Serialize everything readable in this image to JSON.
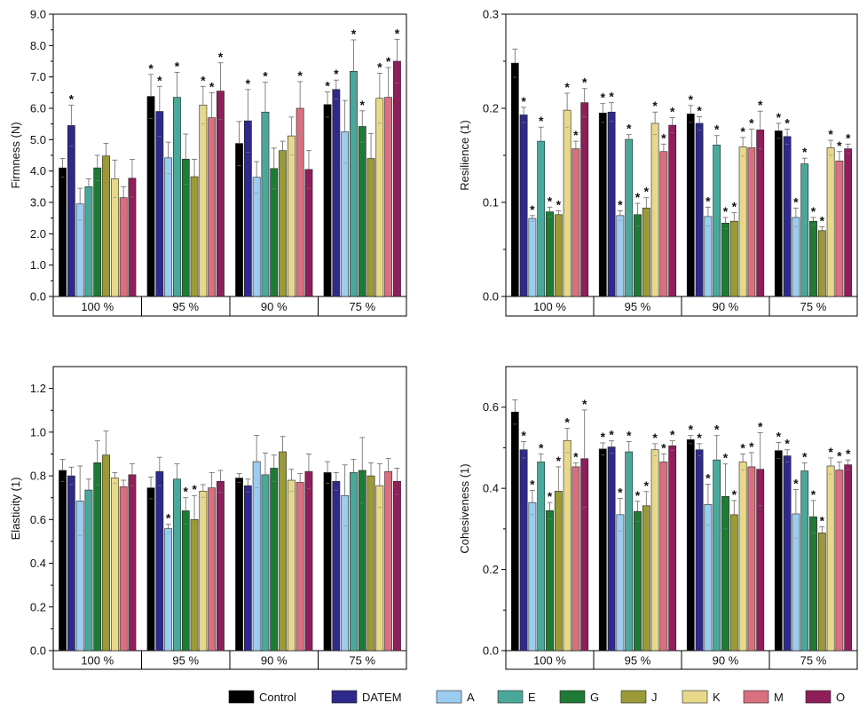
{
  "series_names": [
    "Control",
    "DATEM",
    "A",
    "E",
    "G",
    "J",
    "K",
    "M",
    "O"
  ],
  "colors": [
    "#000000",
    "#2e2a8c",
    "#9ccdf0",
    "#4aa89a",
    "#1e7a34",
    "#9a9b38",
    "#e8d88a",
    "#d9707f",
    "#8e1f5a"
  ],
  "categories": [
    "100 %",
    "95 %",
    "90 %",
    "75 %"
  ],
  "chart_data": [
    {
      "type": "bar",
      "ylabel": "Firmness (N)",
      "ylim": [
        0,
        9
      ],
      "ticks": [
        "0.0",
        "1.0",
        "2.0",
        "3.0",
        "4.0",
        "5.0",
        "6.0",
        "7.0",
        "8.0",
        "9.0"
      ],
      "values": [
        [
          4.1,
          5.45,
          2.95,
          3.5,
          4.1,
          4.48,
          3.75,
          3.15,
          3.77
        ],
        [
          6.38,
          5.9,
          4.42,
          6.35,
          4.38,
          3.82,
          6.1,
          5.7,
          6.55
        ],
        [
          4.88,
          5.6,
          3.8,
          5.88,
          4.08,
          4.65,
          5.12,
          6.0,
          4.05
        ],
        [
          6.12,
          6.6,
          5.25,
          7.18,
          5.42,
          4.4,
          6.32,
          6.35,
          7.5
        ]
      ],
      "errors": [
        [
          0.3,
          0.65,
          0.5,
          0.25,
          0.4,
          0.4,
          0.6,
          0.35,
          0.6
        ],
        [
          0.7,
          0.8,
          0.5,
          0.8,
          0.8,
          0.55,
          0.6,
          0.8,
          0.9
        ],
        [
          0.7,
          1.0,
          0.5,
          0.95,
          0.65,
          0.3,
          0.6,
          0.85,
          0.6
        ],
        [
          0.4,
          0.3,
          1.0,
          1.0,
          0.5,
          0.8,
          0.8,
          0.95,
          0.7
        ]
      ],
      "stars": [
        [
          0,
          1,
          0,
          0,
          0,
          0,
          0,
          0,
          0
        ],
        [
          1,
          1,
          0,
          1,
          0,
          0,
          1,
          1,
          1
        ],
        [
          0,
          1,
          0,
          1,
          0,
          0,
          0,
          1,
          0
        ],
        [
          1,
          1,
          0,
          1,
          1,
          0,
          1,
          1,
          1
        ]
      ]
    },
    {
      "type": "bar",
      "ylabel": "Resilience (1)",
      "ylim": [
        0,
        0.3
      ],
      "ticks": [
        "0.0",
        "0.1",
        "0.2",
        "0.3"
      ],
      "values": [
        [
          0.248,
          0.193,
          0.083,
          0.165,
          0.09,
          0.087,
          0.198,
          0.157,
          0.206
        ],
        [
          0.195,
          0.196,
          0.086,
          0.167,
          0.087,
          0.094,
          0.184,
          0.154,
          0.182
        ],
        [
          0.194,
          0.184,
          0.085,
          0.161,
          0.078,
          0.08,
          0.159,
          0.158,
          0.177
        ],
        [
          0.176,
          0.17,
          0.084,
          0.141,
          0.08,
          0.07,
          0.158,
          0.144,
          0.157
        ]
      ],
      "errors": [
        [
          0.015,
          0.008,
          0.003,
          0.015,
          0.005,
          0.004,
          0.018,
          0.008,
          0.015
        ],
        [
          0.01,
          0.01,
          0.005,
          0.005,
          0.012,
          0.011,
          0.012,
          0.008,
          0.008
        ],
        [
          0.009,
          0.007,
          0.01,
          0.01,
          0.006,
          0.009,
          0.01,
          0.02,
          0.02
        ],
        [
          0.008,
          0.008,
          0.01,
          0.006,
          0.004,
          0.004,
          0.008,
          0.01,
          0.005
        ]
      ],
      "stars": [
        [
          0,
          1,
          1,
          1,
          1,
          1,
          1,
          1,
          1
        ],
        [
          1,
          1,
          1,
          1,
          1,
          1,
          1,
          1,
          1
        ],
        [
          1,
          1,
          1,
          1,
          1,
          1,
          1,
          1,
          1
        ],
        [
          1,
          1,
          1,
          1,
          1,
          1,
          1,
          1,
          1
        ]
      ]
    },
    {
      "type": "bar",
      "ylabel": "Elasticity (1)",
      "ylim": [
        0,
        1.3
      ],
      "ticks": [
        "0.0",
        "0.2",
        "0.4",
        "0.6",
        "0.8",
        "1.0",
        "1.2"
      ],
      "values": [
        [
          0.825,
          0.8,
          0.685,
          0.735,
          0.86,
          0.895,
          0.79,
          0.75,
          0.805
        ],
        [
          0.745,
          0.82,
          0.558,
          0.785,
          0.64,
          0.6,
          0.73,
          0.745,
          0.775
        ],
        [
          0.79,
          0.755,
          0.865,
          0.805,
          0.835,
          0.91,
          0.78,
          0.77,
          0.82
        ],
        [
          0.815,
          0.775,
          0.71,
          0.815,
          0.825,
          0.8,
          0.755,
          0.82,
          0.775
        ]
      ],
      "errors": [
        [
          0.05,
          0.04,
          0.16,
          0.05,
          0.1,
          0.11,
          0.025,
          0.03,
          0.05
        ],
        [
          0.05,
          0.065,
          0.02,
          0.07,
          0.06,
          0.11,
          0.03,
          0.07,
          0.05
        ],
        [
          0.02,
          0.03,
          0.12,
          0.1,
          0.06,
          0.07,
          0.05,
          0.04,
          0.08
        ],
        [
          0.05,
          0.04,
          0.14,
          0.06,
          0.15,
          0.06,
          0.1,
          0.06,
          0.06
        ]
      ],
      "stars": [
        [
          0,
          0,
          0,
          0,
          0,
          0,
          0,
          0,
          0
        ],
        [
          0,
          0,
          1,
          0,
          1,
          1,
          0,
          0,
          0
        ],
        [
          0,
          0,
          0,
          0,
          0,
          0,
          0,
          0,
          0
        ],
        [
          0,
          0,
          0,
          0,
          0,
          0,
          0,
          0,
          0
        ]
      ]
    },
    {
      "type": "bar",
      "ylabel": "Cohesiveness (1)",
      "ylim": [
        0,
        0.7
      ],
      "ticks": [
        "0.0",
        "0.2",
        "0.4",
        "0.6"
      ],
      "values": [
        [
          0.588,
          0.495,
          0.365,
          0.465,
          0.345,
          0.393,
          0.518,
          0.453,
          0.473
        ],
        [
          0.497,
          0.502,
          0.335,
          0.49,
          0.343,
          0.357,
          0.495,
          0.465,
          0.505
        ],
        [
          0.52,
          0.495,
          0.36,
          0.47,
          0.38,
          0.335,
          0.465,
          0.453,
          0.447
        ],
        [
          0.493,
          0.48,
          0.337,
          0.443,
          0.33,
          0.29,
          0.455,
          0.445,
          0.458
        ]
      ],
      "errors": [
        [
          0.03,
          0.02,
          0.03,
          0.02,
          0.02,
          0.06,
          0.03,
          0.01,
          0.12
        ],
        [
          0.015,
          0.015,
          0.04,
          0.025,
          0.025,
          0.035,
          0.015,
          0.02,
          0.012
        ],
        [
          0.01,
          0.015,
          0.05,
          0.06,
          0.08,
          0.035,
          0.02,
          0.035,
          0.09
        ],
        [
          0.02,
          0.015,
          0.06,
          0.02,
          0.04,
          0.015,
          0.02,
          0.02,
          0.012
        ]
      ],
      "stars": [
        [
          0,
          1,
          1,
          1,
          1,
          1,
          1,
          1,
          1
        ],
        [
          1,
          1,
          1,
          1,
          1,
          1,
          1,
          1,
          1
        ],
        [
          1,
          1,
          1,
          1,
          1,
          1,
          1,
          1,
          1
        ],
        [
          1,
          1,
          1,
          1,
          1,
          1,
          1,
          1,
          1
        ]
      ]
    }
  ]
}
